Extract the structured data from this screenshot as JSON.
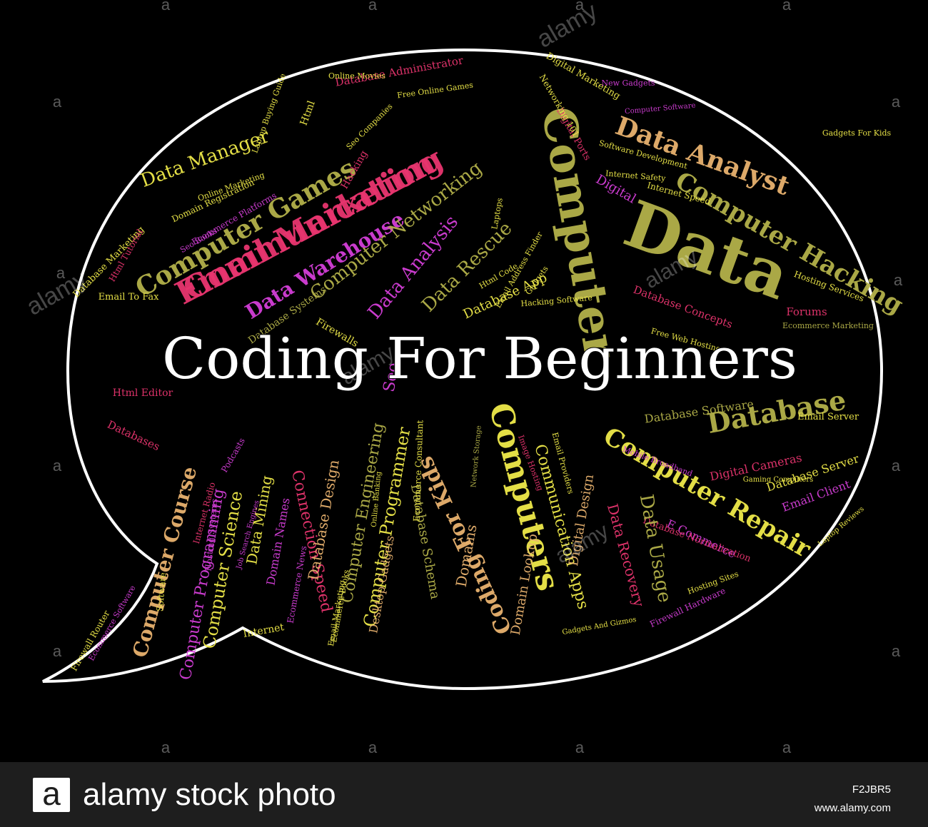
{
  "title": "Coding For Beginners",
  "colors": {
    "background": "#000000",
    "bubble_outline": "#ffffff",
    "title": "#ffffff",
    "pink": "#e8356f",
    "magenta": "#d43fd8",
    "yellow": "#f0ea4a",
    "olive": "#b4b24a",
    "orange": "#e9b36f",
    "lime": "#d9e254",
    "footer": "#1e1e1e"
  },
  "words": [
    "Communication",
    "Computer",
    "Data",
    "Coding For Kids",
    "Computers",
    "Database",
    "Computer Games",
    "Data Analyst",
    "Computer Hacking",
    "Computer Repair",
    "Data Warehouse",
    "Data Manager",
    "Computer Networking",
    "Data Analysis",
    "Data Rescue",
    "Computer Course",
    "Computer Science",
    "Computer Programming",
    "Connection Speed",
    "Data Mining",
    "Database Design",
    "Computer Programmer",
    "Computer Engineering",
    "Communication Apps",
    "Data Recovery",
    "Digital Design",
    "Domain Lookup",
    "Domains",
    "Database Schema",
    "Desktop Gadgets",
    "Domain Names",
    "Database Software",
    "Digital Cameras",
    "Database Server",
    "Email Client",
    "E Commerce",
    "Database Normalization",
    "Database App",
    "Database Systems",
    "Database Concepts",
    "Digital",
    "Forums",
    "Firewalls",
    "Databases",
    "Html Editor",
    "Email To Fax",
    "Database Marketing",
    "Domain Registration",
    "Database Administrator",
    "Digital Marketing",
    "Email Server",
    "Hosting Services",
    "Firewall Hardware",
    "Internet",
    "Ecommerce News",
    "Email Marketing",
    "Html Tutorial",
    "Ecommerce Platforms",
    "Email Address Finder",
    "Gadgets",
    "Laptops",
    "Hacking",
    "Html",
    "Online Movies",
    "Free Online Games",
    "Gadgets For Kids",
    "Mobile Broadband",
    "Hosting Sites",
    "Free Web Hosting",
    "Ecommerce Marketing",
    "Seo",
    "Podcasts",
    "Firewall Router",
    "Ecommerce Software",
    "Data Usage",
    "Digital Ports",
    "Networking 101",
    "Internet Speed",
    "New Gadgets",
    "Html Code",
    "Gaming Computers",
    "Laptop Reviews",
    "Seo Books",
    "Ecommerce Consultant",
    "Email Providers",
    "Image Hosting",
    "Job Search Engines",
    "Internet Radio",
    "Hosting Systems",
    "Software",
    "Gadgets And Gizmos",
    "Online Banking",
    "Network Storage",
    "Laptop Buying Guide",
    "Computer Software",
    "Seo Companies",
    "Internet Safety",
    "Software Development",
    "Online Marketing",
    "Hacking Software",
    "Ecommerce Books",
    "Email Marketing"
  ],
  "watermark": {
    "brand": "alamy",
    "tile_glyph": "a",
    "footer_logo_glyph": "a",
    "footer_text": "alamy stock photo",
    "image_id": "F2JBR5",
    "site": "www.alamy.com"
  }
}
